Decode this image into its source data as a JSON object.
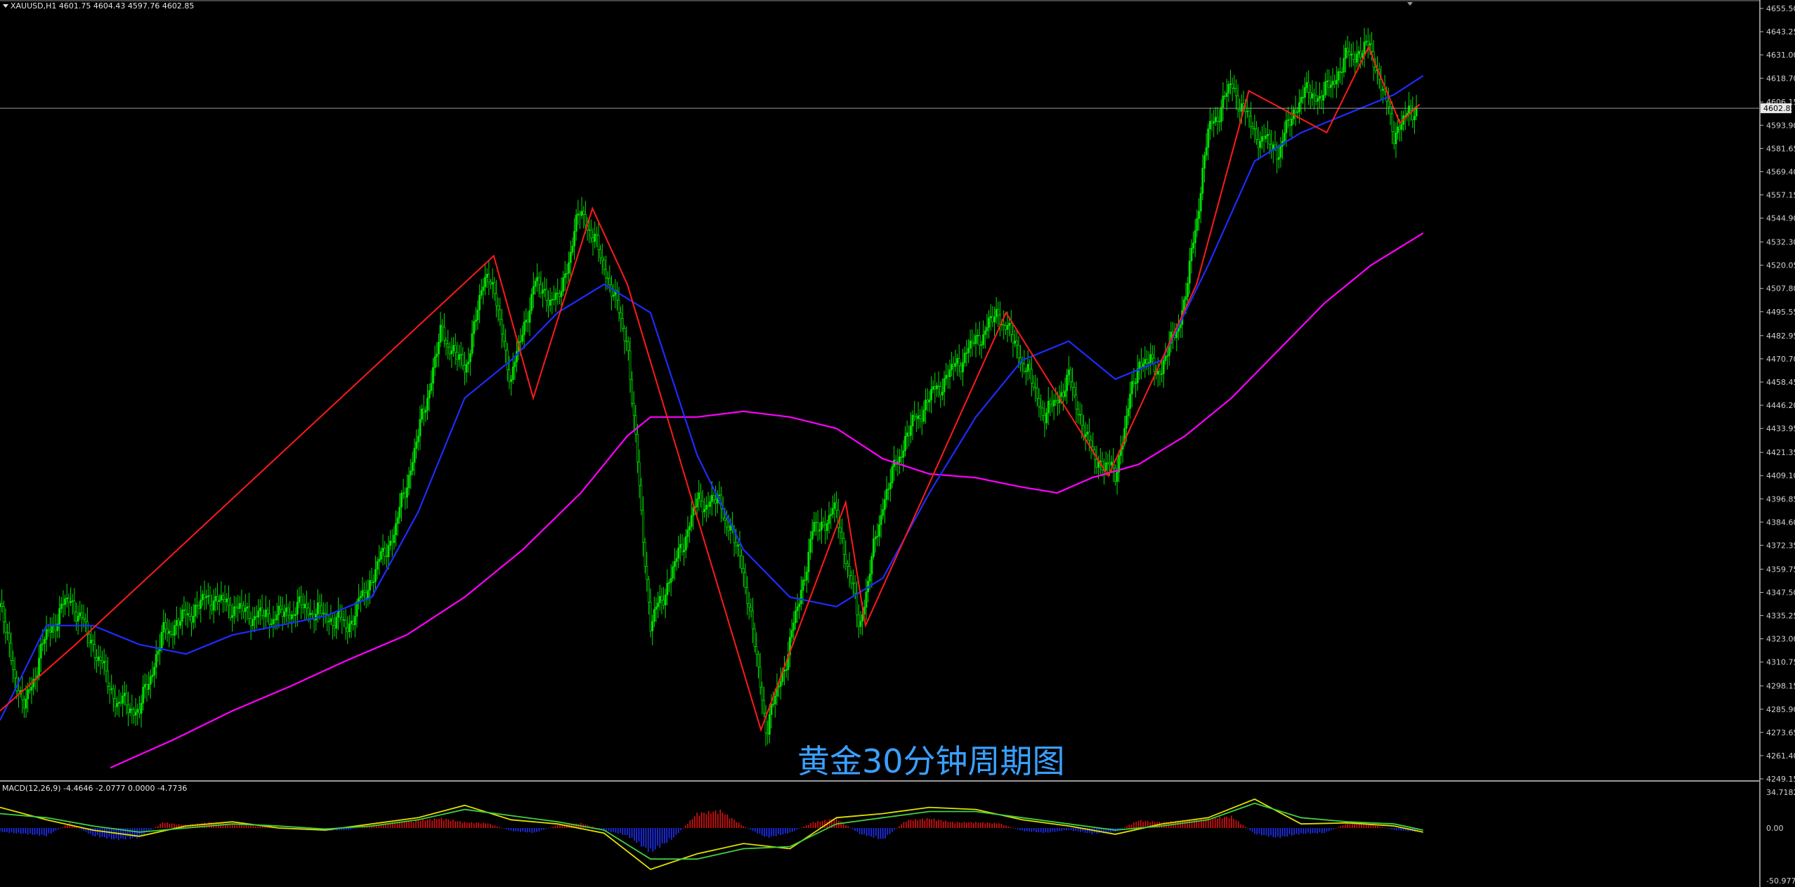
{
  "chart_data": {
    "type": "candlestick",
    "symbol_header": "XAUUSD,H1  4601.75 4604.43 4597.76 4602.85",
    "caption": "黄金30分钟周期图",
    "current_price_label": "4602.85",
    "price_axis": {
      "range": [
        4249.15,
        4655.5
      ],
      "ticks": [
        "4655.50",
        "4643.25",
        "4631.00",
        "4618.70",
        "4606.15",
        "4593.90",
        "4581.65",
        "4569.40",
        "4557.15",
        "4544.90",
        "4532.30",
        "4520.05",
        "4507.80",
        "4495.55",
        "4482.95",
        "4470.70",
        "4458.45",
        "4446.20",
        "4433.95",
        "4421.35",
        "4409.10",
        "4396.85",
        "4384.60",
        "4372.35",
        "4359.75",
        "4347.50",
        "4335.25",
        "4323.00",
        "4310.75",
        "4298.15",
        "4285.90",
        "4273.65",
        "4261.40",
        "4249.15"
      ]
    },
    "price_path": {
      "x": [
        0,
        20,
        40,
        60,
        80,
        100,
        120,
        140,
        160,
        180,
        200,
        220,
        240,
        260,
        280,
        300,
        320,
        340,
        360,
        380,
        400,
        420,
        440,
        460,
        480,
        500,
        520,
        540,
        560,
        580,
        600,
        620,
        640,
        660,
        680,
        700,
        720,
        740,
        760,
        780,
        800,
        820,
        840,
        860,
        880,
        900,
        920,
        940,
        960,
        980,
        1000,
        1020,
        1040,
        1060,
        1080,
        1100,
        1120,
        1140,
        1160,
        1180,
        1200,
        1220
      ],
      "close": [
        4340,
        4285,
        4325,
        4345,
        4320,
        4290,
        4285,
        4325,
        4335,
        4345,
        4340,
        4335,
        4335,
        4340,
        4335,
        4330,
        4355,
        4380,
        4430,
        4485,
        4465,
        4520,
        4460,
        4510,
        4500,
        4550,
        4520,
        4480,
        4330,
        4360,
        4395,
        4395,
        4360,
        4275,
        4320,
        4380,
        4390,
        4330,
        4395,
        4430,
        4450,
        4465,
        4480,
        4495,
        4470,
        4440,
        4460,
        4420,
        4410,
        4470,
        4465,
        4500,
        4590,
        4615,
        4590,
        4580,
        4610,
        4610,
        4630,
        4635,
        4590,
        4605
      ]
    },
    "zigzag": {
      "x": [
        0,
        65,
        425,
        459,
        510,
        540,
        655,
        728,
        745,
        866,
        954,
        1030,
        1075,
        1142,
        1178,
        1205,
        1222
      ],
      "y": [
        4285,
        4320,
        4525,
        4450,
        4550,
        4510,
        4275,
        4395,
        4330,
        4495,
        4409,
        4510,
        4612,
        4590,
        4635,
        4595,
        4605
      ]
    },
    "ma_blue": {
      "x": [
        0,
        40,
        80,
        120,
        160,
        200,
        240,
        280,
        320,
        360,
        400,
        440,
        480,
        520,
        560,
        600,
        640,
        680,
        720,
        760,
        800,
        840,
        880,
        920,
        960,
        1000,
        1040,
        1080,
        1120,
        1160,
        1200,
        1225
      ],
      "y": [
        4280,
        4330,
        4330,
        4320,
        4315,
        4325,
        4330,
        4335,
        4345,
        4390,
        4450,
        4470,
        4495,
        4510,
        4495,
        4420,
        4370,
        4345,
        4340,
        4355,
        4400,
        4440,
        4470,
        4480,
        4460,
        4470,
        4520,
        4575,
        4590,
        4600,
        4610,
        4620
      ]
    },
    "ma_magenta": {
      "x": [
        95,
        150,
        200,
        250,
        300,
        350,
        400,
        450,
        500,
        540,
        560,
        600,
        640,
        680,
        720,
        760,
        800,
        840,
        880,
        910,
        940,
        980,
        1020,
        1060,
        1100,
        1140,
        1180,
        1225
      ],
      "y": [
        4255,
        4270,
        4285,
        4298,
        4312,
        4325,
        4345,
        4370,
        4400,
        4430,
        4440,
        4440,
        4443,
        4440,
        4434,
        4418,
        4410,
        4408,
        4403,
        4400,
        4408,
        4415,
        4430,
        4450,
        4475,
        4500,
        4520,
        4537
      ]
    },
    "macd": {
      "header": "MACD(12,26,9) -4.4646 -2.0777 0.0000 -4.7736",
      "range": [
        -50.9776,
        34.7182
      ],
      "ticks": [
        "34.7182",
        "0.00",
        "-50.9776"
      ],
      "histogram_x": [
        0,
        20,
        40,
        60,
        80,
        100,
        120,
        140,
        160,
        180,
        200,
        220,
        240,
        260,
        280,
        300,
        320,
        340,
        360,
        380,
        400,
        420,
        440,
        460,
        480,
        500,
        520,
        540,
        560,
        580,
        600,
        620,
        640,
        660,
        680,
        700,
        720,
        740,
        760,
        780,
        800,
        820,
        840,
        860,
        880,
        900,
        920,
        940,
        960,
        980,
        1000,
        1020,
        1040,
        1060,
        1080,
        1100,
        1120,
        1140,
        1160,
        1180,
        1200,
        1220
      ],
      "histogram": [
        -4,
        -6,
        -8,
        5,
        -8,
        -12,
        -10,
        6,
        3,
        6,
        4,
        2,
        0,
        -2,
        -3,
        -2,
        3,
        6,
        8,
        10,
        6,
        5,
        -3,
        -5,
        3,
        5,
        -2,
        -8,
        -25,
        -10,
        15,
        18,
        2,
        -10,
        -5,
        6,
        10,
        -6,
        -12,
        8,
        10,
        6,
        6,
        5,
        -3,
        -5,
        -2,
        -6,
        -4,
        8,
        6,
        8,
        10,
        12,
        -6,
        -10,
        -6,
        -5,
        5,
        4,
        -2,
        -4
      ],
      "signal_x": [
        0,
        40,
        80,
        120,
        160,
        200,
        240,
        280,
        320,
        360,
        400,
        440,
        480,
        520,
        560,
        600,
        640,
        680,
        720,
        760,
        800,
        840,
        880,
        920,
        960,
        1000,
        1040,
        1080,
        1120,
        1160,
        1200,
        1225
      ],
      "macd_line": [
        20,
        8,
        -2,
        -8,
        2,
        6,
        0,
        -2,
        4,
        10,
        22,
        8,
        4,
        -5,
        -40,
        -25,
        -15,
        -20,
        10,
        14,
        20,
        18,
        8,
        2,
        -6,
        4,
        10,
        28,
        4,
        5,
        2,
        -4
      ],
      "signal_line": [
        14,
        10,
        2,
        -4,
        0,
        4,
        2,
        -1,
        2,
        8,
        18,
        12,
        6,
        -2,
        -30,
        -30,
        -20,
        -18,
        4,
        10,
        16,
        16,
        10,
        4,
        -2,
        2,
        8,
        24,
        10,
        6,
        4,
        -2
      ]
    }
  }
}
